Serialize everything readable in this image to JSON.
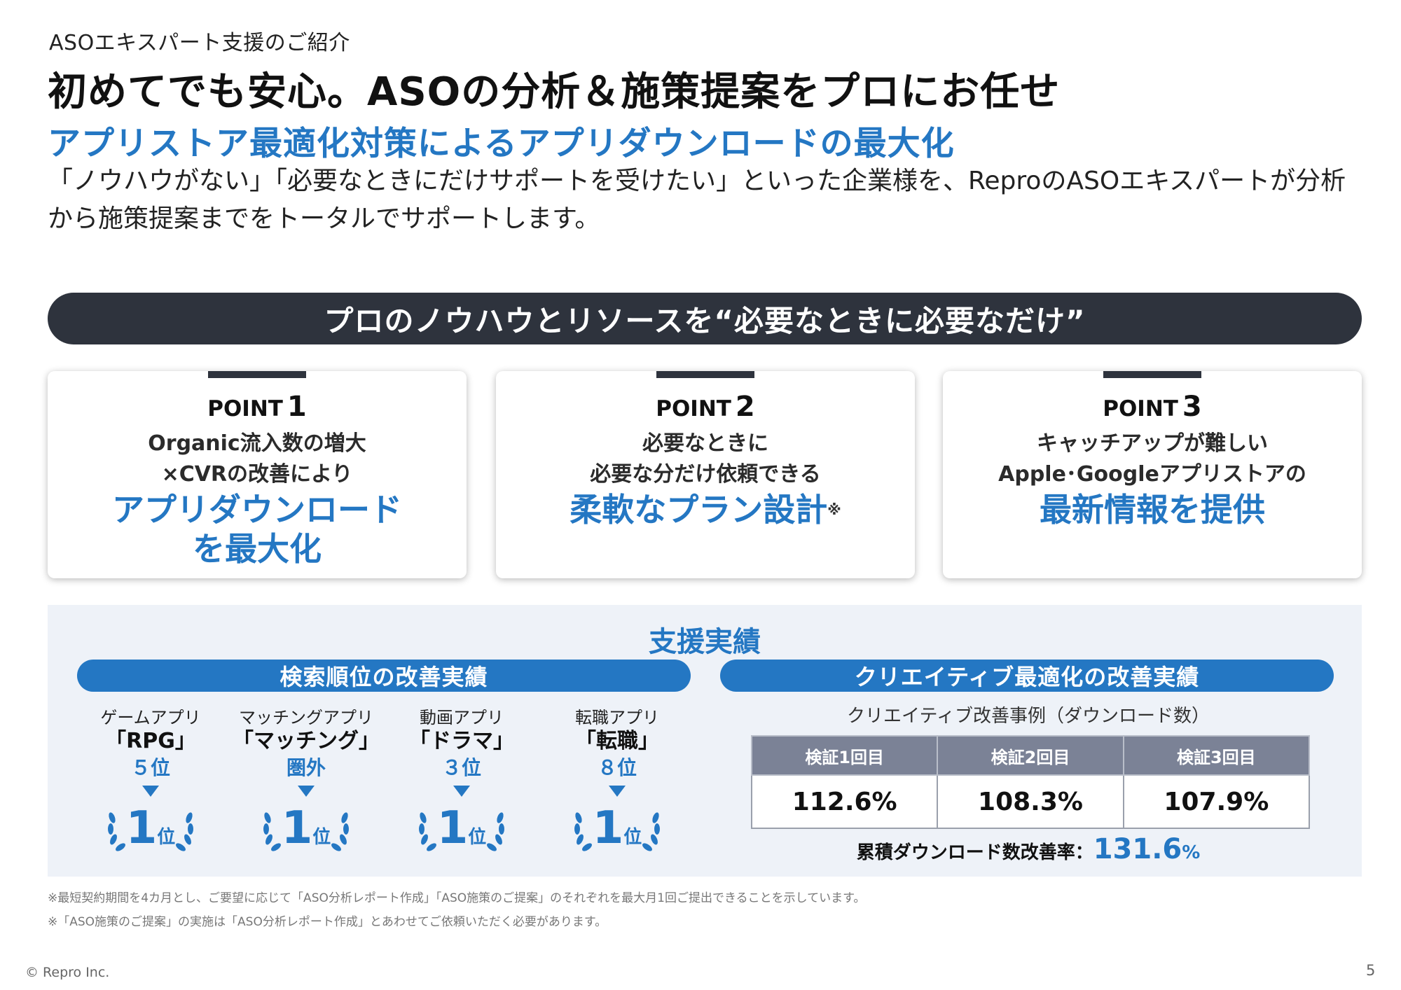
{
  "header": {
    "kicker": "ASOエキスパート支援のご紹介",
    "title": "初めてでも安心。ASOの分析＆施策提案をプロにお任せ",
    "subtitle": "アプリストア最適化対策によるアプリダウンロードの最大化",
    "description": "「ノウハウがない」「必要なときにだけサポートを受けたい」といった企業様を、ReproのASOエキスパートが分析から施策提案までをトータルでサポートします。"
  },
  "banner": "プロのノウハウとリソースを“必要なときに必要なだけ”",
  "points": [
    {
      "label": "POINT",
      "number": "1",
      "line1": "Organic流入数の増大",
      "line2": "×CVRの改善により",
      "highlight1": "アプリダウンロード",
      "highlight2": "を最大化",
      "note": ""
    },
    {
      "label": "POINT",
      "number": "2",
      "line1": "必要なときに",
      "line2": "必要な分だけ依頼できる",
      "highlight1": "柔軟なプラン設計",
      "highlight2": "",
      "note": "※"
    },
    {
      "label": "POINT",
      "number": "3",
      "line1": "キャッチアップが難しい",
      "line2": "Apple･Googleアプリストアの",
      "highlight1": "最新情報を提供",
      "highlight2": "",
      "note": ""
    }
  ],
  "results": {
    "title": "支援実績",
    "search_pill": "検索順位の改善実績",
    "creative_pill": "クリエイティブ最適化の改善実績",
    "rankings": [
      {
        "category": "ゲームアプリ",
        "name": "「RPG」",
        "before": "５位",
        "after_number": "1",
        "after_unit": "位"
      },
      {
        "category": "マッチングアプリ",
        "name": "「マッチング」",
        "before": "圏外",
        "after_number": "1",
        "after_unit": "位"
      },
      {
        "category": "動画アプリ",
        "name": "「ドラマ」",
        "before": "３位",
        "after_number": "1",
        "after_unit": "位"
      },
      {
        "category": "転職アプリ",
        "name": "「転職」",
        "before": "８位",
        "after_number": "1",
        "after_unit": "位"
      }
    ],
    "creative_caption": "クリエイティブ改善事例（ダウンロード数）",
    "table": {
      "headers": [
        "検証1回目",
        "検証2回目",
        "検証3回目"
      ],
      "values": [
        "112.6%",
        "108.3%",
        "107.9%"
      ]
    },
    "total_label": "累積ダウンロード数改善率：",
    "total_value": "131.6",
    "total_unit": "%"
  },
  "footnotes": [
    "※最短契約期間を4カ月とし、ご要望に応じて「ASO分析レポート作成」「ASO施策のご提案」のそれぞれを最大月1回ご提出できることを示しています。",
    "※「ASO施策のご提案」の実施は「ASO分析レポート作成」とあわせてご依頼いただく必要があります。"
  ],
  "footer": {
    "copyright": "© Repro Inc.",
    "page": "5"
  },
  "colors": {
    "accent": "#2477c3",
    "dark": "#2e333d",
    "panel": "#eef2f8",
    "table_header": "#7b8296"
  }
}
